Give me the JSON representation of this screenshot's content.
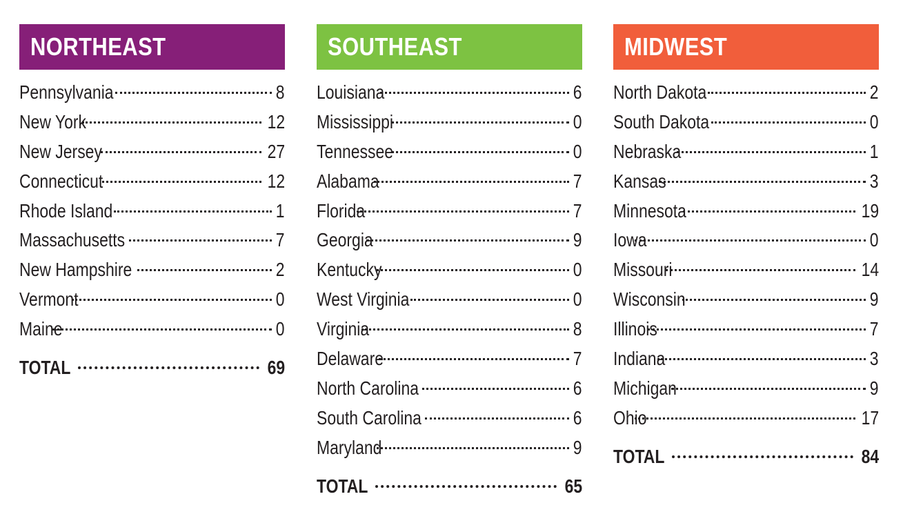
{
  "regions": [
    {
      "id": "northeast",
      "title": "NORTHEAST",
      "color": "#861f78",
      "states": [
        {
          "name": "Pennsylvania",
          "value": "8"
        },
        {
          "name": "New York",
          "value": "12"
        },
        {
          "name": "New Jersey",
          "value": "27"
        },
        {
          "name": "Connecticut",
          "value": "12"
        },
        {
          "name": "Rhode Island",
          "value": "1"
        },
        {
          "name": "Massachusetts",
          "value": "7"
        },
        {
          "name": "New Hampshire",
          "value": "2"
        },
        {
          "name": "Vermont",
          "value": "0"
        },
        {
          "name": "Maine",
          "value": "0"
        }
      ],
      "total_label": "TOTAL",
      "total_value": "69"
    },
    {
      "id": "southeast",
      "title": "SOUTHEAST",
      "color": "#7dc242",
      "states": [
        {
          "name": "Louisiana",
          "value": "6"
        },
        {
          "name": "Mississippi",
          "value": "0"
        },
        {
          "name": "Tennessee",
          "value": "0"
        },
        {
          "name": "Alabama",
          "value": "7"
        },
        {
          "name": "Florida",
          "value": "7"
        },
        {
          "name": "Georgia",
          "value": "9"
        },
        {
          "name": "Kentucky",
          "value": "0"
        },
        {
          "name": "West Virginia",
          "value": "0"
        },
        {
          "name": "Virginia",
          "value": "8"
        },
        {
          "name": "Delaware",
          "value": "7"
        },
        {
          "name": "North Carolina",
          "value": "6"
        },
        {
          "name": "South Carolina",
          "value": "6"
        },
        {
          "name": "Maryland",
          "value": "9"
        }
      ],
      "total_label": "TOTAL",
      "total_value": "65"
    },
    {
      "id": "midwest",
      "title": "MIDWEST",
      "color": "#f15e3b",
      "states": [
        {
          "name": "North Dakota",
          "value": "2"
        },
        {
          "name": "South Dakota",
          "value": "0"
        },
        {
          "name": "Nebraska",
          "value": "1"
        },
        {
          "name": "Kansas",
          "value": "3"
        },
        {
          "name": "Minnesota",
          "value": "19"
        },
        {
          "name": "Iowa",
          "value": "0"
        },
        {
          "name": "Missouri",
          "value": "14"
        },
        {
          "name": "Wisconsin",
          "value": "9"
        },
        {
          "name": "Illinois",
          "value": "7"
        },
        {
          "name": "Indiana",
          "value": "3"
        },
        {
          "name": "Michigan",
          "value": "9"
        },
        {
          "name": "Ohio",
          "value": "17"
        }
      ],
      "total_label": "TOTAL",
      "total_value": "84"
    }
  ]
}
